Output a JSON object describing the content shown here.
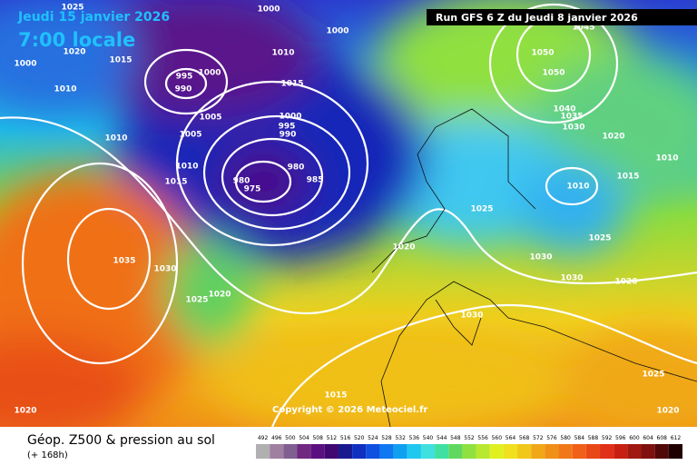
{
  "header": {
    "date": "Jeudi 15 janvier 2026",
    "time": "7:00 locale",
    "run": "Run GFS 6 Z du Jeudi 8 janvier 2026"
  },
  "copyright": "Copyright © 2026 Meteociel.fr",
  "footer": {
    "title": "Géop. Z500 & pression au sol",
    "subtitle": "(+ 168h)"
  },
  "scale_labels": [
    "492",
    "496",
    "500",
    "504",
    "508",
    "512",
    "516",
    "520",
    "524",
    "528",
    "532",
    "536",
    "540",
    "544",
    "548",
    "552",
    "556",
    "560",
    "564",
    "568",
    "572",
    "576",
    "580",
    "584",
    "588",
    "592",
    "596",
    "600",
    "604",
    "608",
    "612"
  ],
  "pressure_labels": [
    "1025",
    "1000",
    "1000",
    "1020",
    "1015",
    "1010",
    "1000",
    "995",
    "1000",
    "990",
    "1015",
    "1010",
    "1005",
    "1000",
    "1010",
    "1005",
    "995",
    "990",
    "980",
    "1010",
    "1015",
    "980",
    "975",
    "985",
    "1035",
    "1030",
    "1025",
    "1020",
    "1020",
    "1025",
    "1030",
    "1025",
    "1030",
    "1020",
    "1010",
    "1015",
    "1020",
    "1010",
    "1050",
    "1050",
    "1045",
    "1040",
    "1035",
    "1030",
    "1030",
    "1015",
    "1025",
    "1020",
    "1020"
  ]
}
